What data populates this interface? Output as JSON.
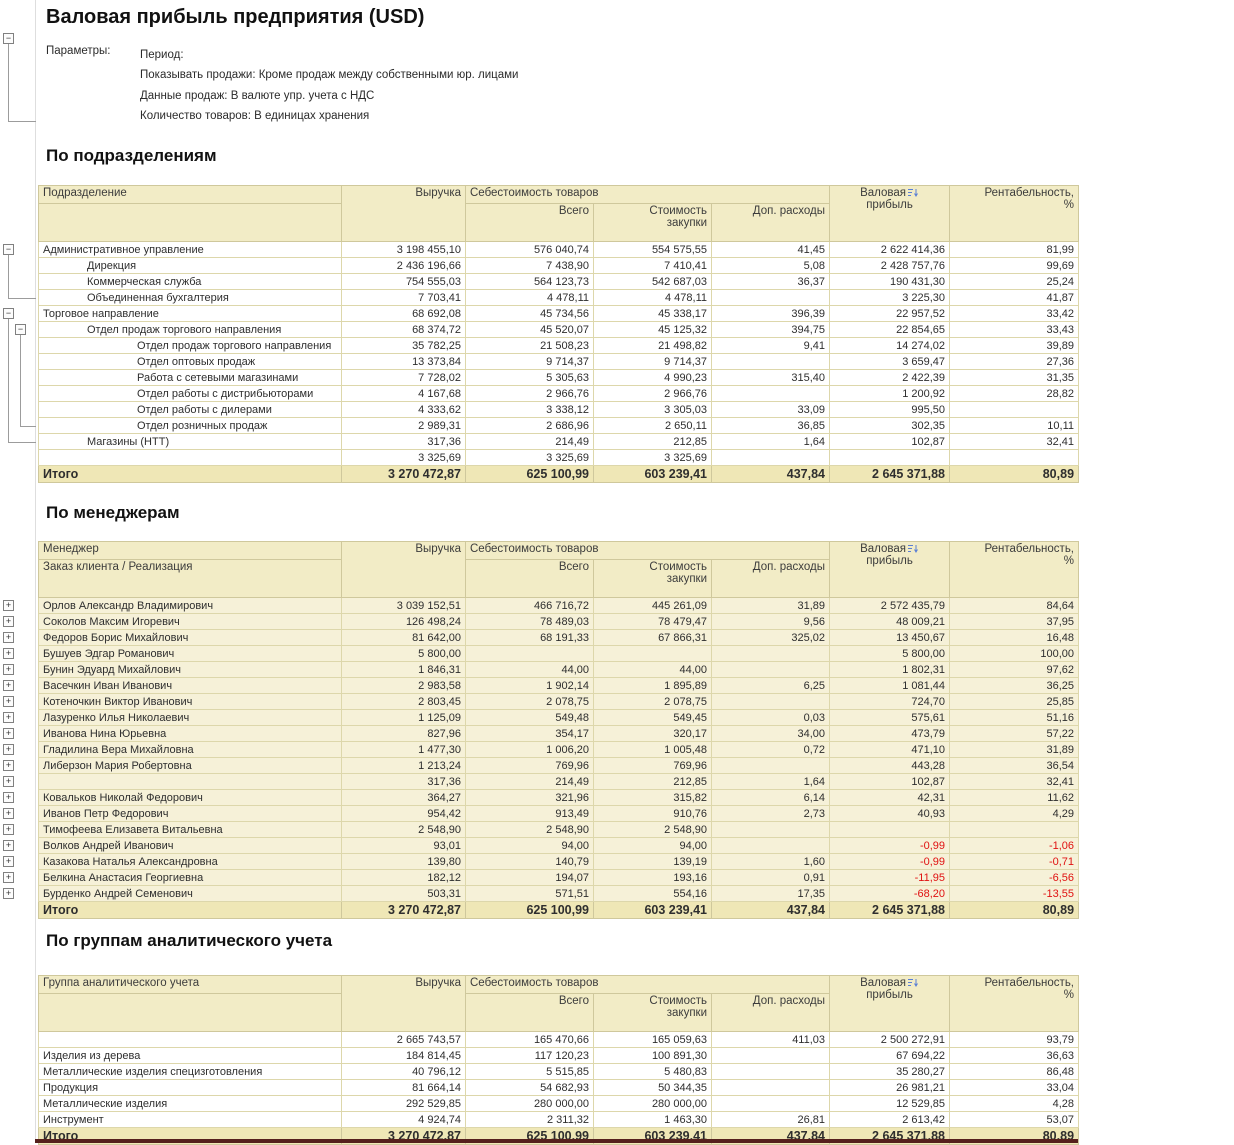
{
  "report": {
    "title": "Валовая прибыль предприятия (USD)",
    "params_label": "Параметры:",
    "params": [
      "Период:",
      "Показывать продажи: Кроме продаж между собственными юр. лицами",
      "Данные продаж: В валюте упр. учета с НДС",
      "Количество товаров: В единицах хранения"
    ]
  },
  "columns": {
    "revenue": "Выручка",
    "cost_group": "Себестоимость товаров",
    "cost_total": "Всего",
    "cost_purchase": "Стоимость\nзакупки",
    "cost_extra": "Доп. расходы",
    "gross_line1": "Валовая",
    "gross_line2": "прибыль",
    "margin": "Рентабельность,\n%",
    "total_label": "Итого",
    "sort_icon": "sort-descending"
  },
  "tables": [
    {
      "section_title": "По подразделениям",
      "header": {
        "name": "Подразделение",
        "subname": ""
      },
      "style": "white",
      "groups": [
        {
          "from": 0,
          "to": 3,
          "depth": 0
        },
        {
          "from": 4,
          "to": 12,
          "depth": 0
        },
        {
          "from": 5,
          "to": 11,
          "depth": 1
        }
      ],
      "rows": [
        {
          "name": "Административное управление",
          "indent": 0,
          "values": [
            "3 198 455,10",
            "576 040,74",
            "554 575,55",
            "41,45",
            "2 622 414,36",
            "81,99"
          ]
        },
        {
          "name": "Дирекция",
          "indent": 1,
          "values": [
            "2 436 196,66",
            "7 438,90",
            "7 410,41",
            "5,08",
            "2 428 757,76",
            "99,69"
          ]
        },
        {
          "name": "Коммерческая служба",
          "indent": 1,
          "values": [
            "754 555,03",
            "564 123,73",
            "542 687,03",
            "36,37",
            "190 431,30",
            "25,24"
          ]
        },
        {
          "name": "Объединенная бухгалтерия",
          "indent": 1,
          "values": [
            "7 703,41",
            "4 478,11",
            "4 478,11",
            "",
            "3 225,30",
            "41,87"
          ]
        },
        {
          "name": "Торговое направление",
          "indent": 0,
          "values": [
            "68 692,08",
            "45 734,56",
            "45 338,17",
            "396,39",
            "22 957,52",
            "33,42"
          ]
        },
        {
          "name": "Отдел продаж торгового направления",
          "indent": 1,
          "values": [
            "68 374,72",
            "45 520,07",
            "45 125,32",
            "394,75",
            "22 854,65",
            "33,43"
          ]
        },
        {
          "name": "Отдел продаж торгового направления",
          "indent": 2,
          "values": [
            "35 782,25",
            "21 508,23",
            "21 498,82",
            "9,41",
            "14 274,02",
            "39,89"
          ]
        },
        {
          "name": "Отдел оптовых продаж",
          "indent": 2,
          "values": [
            "13 373,84",
            "9 714,37",
            "9 714,37",
            "",
            "3 659,47",
            "27,36"
          ]
        },
        {
          "name": "Работа с сетевыми магазинами",
          "indent": 2,
          "values": [
            "7 728,02",
            "5 305,63",
            "4 990,23",
            "315,40",
            "2 422,39",
            "31,35"
          ]
        },
        {
          "name": "Отдел работы с дистрибьюторами",
          "indent": 2,
          "values": [
            "4 167,68",
            "2 966,76",
            "2 966,76",
            "",
            "1 200,92",
            "28,82"
          ]
        },
        {
          "name": "Отдел работы с дилерами",
          "indent": 2,
          "values": [
            "4 333,62",
            "3 338,12",
            "3 305,03",
            "33,09",
            "995,50",
            ""
          ]
        },
        {
          "name": "Отдел розничных продаж",
          "indent": 2,
          "values": [
            "2 989,31",
            "2 686,96",
            "2 650,11",
            "36,85",
            "302,35",
            "10,11"
          ]
        },
        {
          "name": "Магазины (НТТ)",
          "indent": 1,
          "values": [
            "317,36",
            "214,49",
            "212,85",
            "1,64",
            "102,87",
            "32,41"
          ]
        },
        {
          "name": "",
          "indent": 1,
          "values": [
            "3 325,69",
            "3 325,69",
            "3 325,69",
            "",
            "",
            ""
          ]
        }
      ],
      "total": [
        "3 270 472,87",
        "625 100,99",
        "603 239,41",
        "437,84",
        "2 645 371,88",
        "80,89"
      ]
    },
    {
      "section_title": "По менеджерам",
      "header": {
        "name": "Менеджер",
        "subname": "Заказ клиента / Реализация"
      },
      "style": "cream",
      "expandable_rows": true,
      "rows": [
        {
          "name": "Орлов Александр Владимирович",
          "indent": 0,
          "values": [
            "3 039 152,51",
            "466 716,72",
            "445 261,09",
            "31,89",
            "2 572 435,79",
            "84,64"
          ]
        },
        {
          "name": "Соколов Максим Игоревич",
          "indent": 0,
          "values": [
            "126 498,24",
            "78 489,03",
            "78 479,47",
            "9,56",
            "48 009,21",
            "37,95"
          ]
        },
        {
          "name": "Федоров Борис Михайлович",
          "indent": 0,
          "values": [
            "81 642,00",
            "68 191,33",
            "67 866,31",
            "325,02",
            "13 450,67",
            "16,48"
          ]
        },
        {
          "name": "Бушуев Эдгар Романович",
          "indent": 0,
          "values": [
            "5 800,00",
            "",
            "",
            "",
            "5 800,00",
            "100,00"
          ]
        },
        {
          "name": "Бунин Эдуард Михайлович",
          "indent": 0,
          "values": [
            "1 846,31",
            "44,00",
            "44,00",
            "",
            "1 802,31",
            "97,62"
          ]
        },
        {
          "name": "Васечкин Иван Иванович",
          "indent": 0,
          "values": [
            "2 983,58",
            "1 902,14",
            "1 895,89",
            "6,25",
            "1 081,44",
            "36,25"
          ]
        },
        {
          "name": "Котеночкин Виктор Иванович",
          "indent": 0,
          "values": [
            "2 803,45",
            "2 078,75",
            "2 078,75",
            "",
            "724,70",
            "25,85"
          ]
        },
        {
          "name": "Лазуренко Илья Николаевич",
          "indent": 0,
          "values": [
            "1 125,09",
            "549,48",
            "549,45",
            "0,03",
            "575,61",
            "51,16"
          ]
        },
        {
          "name": "Иванова Нина Юрьевна",
          "indent": 0,
          "values": [
            "827,96",
            "354,17",
            "320,17",
            "34,00",
            "473,79",
            "57,22"
          ]
        },
        {
          "name": "Гладилина Вера Михайловна",
          "indent": 0,
          "values": [
            "1 477,30",
            "1 006,20",
            "1 005,48",
            "0,72",
            "471,10",
            "31,89"
          ]
        },
        {
          "name": "Либерзон Мария Робертовна",
          "indent": 0,
          "values": [
            "1 213,24",
            "769,96",
            "769,96",
            "",
            "443,28",
            "36,54"
          ]
        },
        {
          "name": "",
          "indent": 0,
          "values": [
            "317,36",
            "214,49",
            "212,85",
            "1,64",
            "102,87",
            "32,41"
          ]
        },
        {
          "name": "Ковальков Николай Федорович",
          "indent": 0,
          "values": [
            "364,27",
            "321,96",
            "315,82",
            "6,14",
            "42,31",
            "11,62"
          ]
        },
        {
          "name": "Иванов Петр Федорович",
          "indent": 0,
          "values": [
            "954,42",
            "913,49",
            "910,76",
            "2,73",
            "40,93",
            "4,29"
          ]
        },
        {
          "name": "Тимофеева Елизавета Витальевна",
          "indent": 0,
          "values": [
            "2 548,90",
            "2 548,90",
            "2 548,90",
            "",
            "",
            ""
          ]
        },
        {
          "name": "Волков Андрей Иванович",
          "indent": 0,
          "values": [
            "93,01",
            "94,00",
            "94,00",
            "",
            "-0,99",
            "-1,06"
          ]
        },
        {
          "name": "Казакова Наталья Александровна",
          "indent": 0,
          "values": [
            "139,80",
            "140,79",
            "139,19",
            "1,60",
            "-0,99",
            "-0,71"
          ]
        },
        {
          "name": "Белкина Анастасия Георгиевна",
          "indent": 0,
          "values": [
            "182,12",
            "194,07",
            "193,16",
            "0,91",
            "-11,95",
            "-6,56"
          ]
        },
        {
          "name": "Бурденко Андрей Семенович",
          "indent": 0,
          "values": [
            "503,31",
            "571,51",
            "554,16",
            "17,35",
            "-68,20",
            "-13,55"
          ]
        }
      ],
      "total": [
        "3 270 472,87",
        "625 100,99",
        "603 239,41",
        "437,84",
        "2 645 371,88",
        "80,89"
      ]
    },
    {
      "section_title": "По группам аналитического учета",
      "header": {
        "name": "Группа аналитического учета",
        "subname": ""
      },
      "style": "white",
      "rows": [
        {
          "name": "",
          "indent": 0,
          "values": [
            "2 665 743,57",
            "165 470,66",
            "165 059,63",
            "411,03",
            "2 500 272,91",
            "93,79"
          ]
        },
        {
          "name": "Изделия из дерева",
          "indent": 0,
          "values": [
            "184 814,45",
            "117 120,23",
            "100 891,30",
            "",
            "67 694,22",
            "36,63"
          ]
        },
        {
          "name": "Металлические изделия специзготовления",
          "indent": 0,
          "values": [
            "40 796,12",
            "5 515,85",
            "5 480,83",
            "",
            "35 280,27",
            "86,48"
          ]
        },
        {
          "name": "Продукция",
          "indent": 0,
          "values": [
            "81 664,14",
            "54 682,93",
            "50 344,35",
            "",
            "26 981,21",
            "33,04"
          ]
        },
        {
          "name": "Металлические изделия",
          "indent": 0,
          "values": [
            "292 529,85",
            "280 000,00",
            "280 000,00",
            "",
            "12 529,85",
            "4,28"
          ]
        },
        {
          "name": "Инструмент",
          "indent": 0,
          "values": [
            "4 924,74",
            "2 311,32",
            "1 463,30",
            "26,81",
            "2 613,42",
            "53,07"
          ]
        }
      ],
      "total": [
        "3 270 472,87",
        "625 100,99",
        "603 239,41",
        "437,84",
        "2 645 371,88",
        "80,89"
      ]
    }
  ]
}
